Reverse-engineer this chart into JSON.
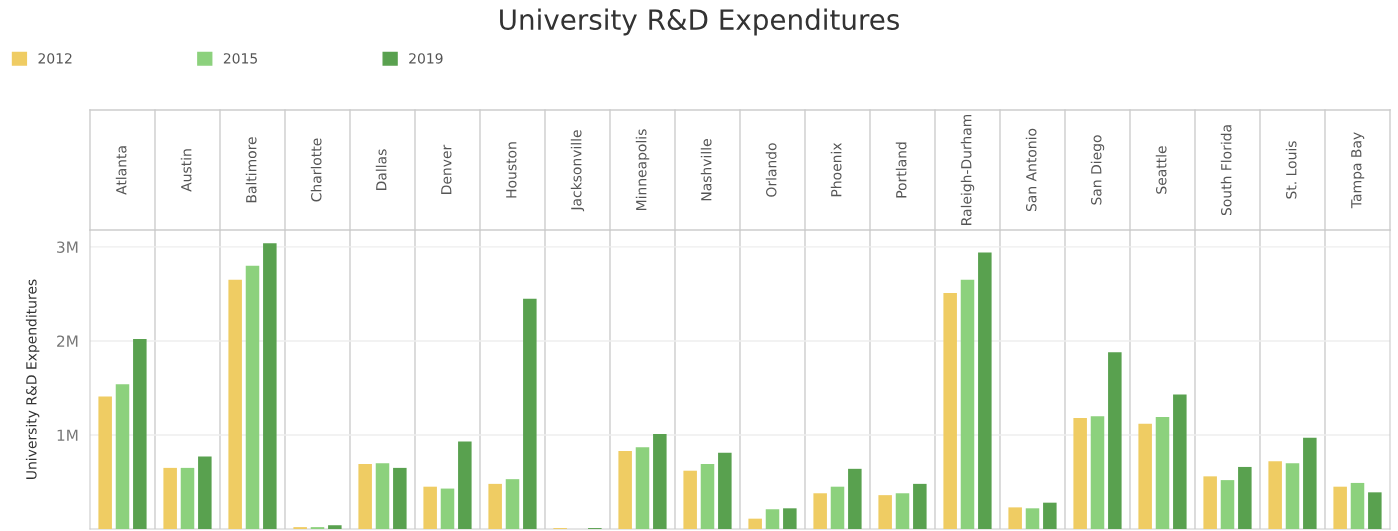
{
  "chart_data": {
    "type": "bar",
    "title": "University R&D Expenditures",
    "ylabel": "University R&D Expenditures",
    "categories": [
      "Atlanta",
      "Austin",
      "Baltimore",
      "Charlotte",
      "Dallas",
      "Denver",
      "Houston",
      "Jacksonville",
      "Minneapolis",
      "Nashville",
      "Orlando",
      "Phoenix",
      "Portland",
      "Raleigh-Durham",
      "San Antonio",
      "San Diego",
      "Seattle",
      "South Florida",
      "St. Louis",
      "Tampa Bay"
    ],
    "series": [
      {
        "name": "2012",
        "color": "#efcc63",
        "values": [
          1410000,
          650000,
          2650000,
          20000,
          690000,
          450000,
          480000,
          10000,
          830000,
          620000,
          110000,
          380000,
          360000,
          2510000,
          230000,
          1180000,
          1120000,
          560000,
          720000,
          450000
        ]
      },
      {
        "name": "2015",
        "color": "#8cd17d",
        "values": [
          1540000,
          650000,
          2800000,
          20000,
          700000,
          430000,
          530000,
          0,
          870000,
          690000,
          210000,
          450000,
          380000,
          2650000,
          220000,
          1200000,
          1190000,
          520000,
          700000,
          490000
        ]
      },
      {
        "name": "2019",
        "color": "#59a14f",
        "values": [
          2020000,
          770000,
          3040000,
          40000,
          650000,
          930000,
          2450000,
          10000,
          1010000,
          810000,
          220000,
          640000,
          480000,
          2940000,
          280000,
          1880000,
          1430000,
          660000,
          970000,
          390000
        ]
      }
    ],
    "ylim": [
      0,
      3180000
    ],
    "yticks": [
      {
        "value": 1000000,
        "label": "1M"
      },
      {
        "value": 2000000,
        "label": "2M"
      },
      {
        "value": 3000000,
        "label": "3M"
      }
    ],
    "grid": true,
    "legend": "top left"
  }
}
